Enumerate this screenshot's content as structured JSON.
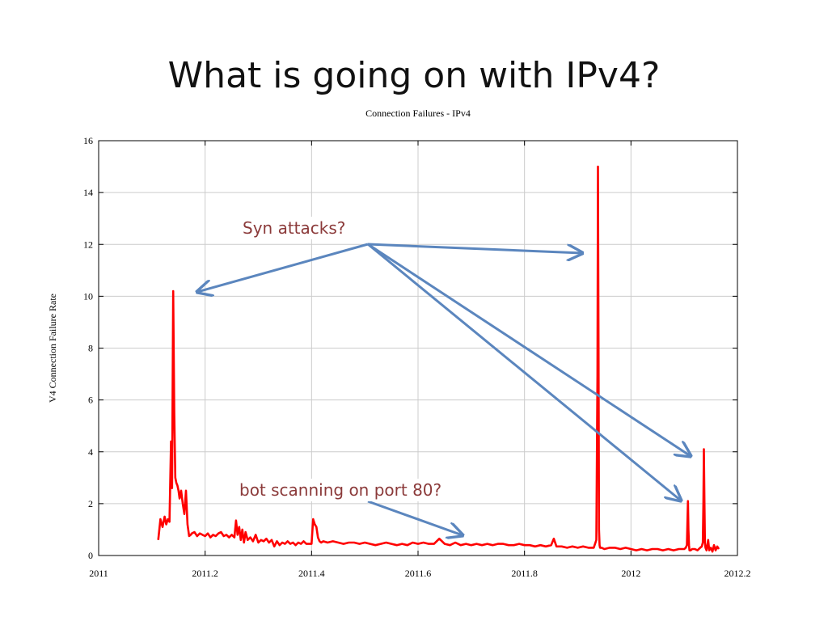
{
  "slide": {
    "title": "What is going on with IPv4?"
  },
  "annotations": {
    "syn": "Syn attacks?",
    "bot": "bot scanning on port 80?"
  },
  "chart_data": {
    "type": "line",
    "title": "Connection Failures - IPv4",
    "xlabel": "",
    "ylabel": "V4 Connection Failure Rate",
    "xlim": [
      2011,
      2012.2
    ],
    "ylim": [
      0,
      16
    ],
    "xticks": [
      2011,
      2011.2,
      2011.4,
      2011.6,
      2011.8,
      2012,
      2012.2
    ],
    "xtick_labels": [
      "2011",
      "2011.2",
      "2011.4",
      "2011.6",
      "2011.8",
      "2012",
      "2012.2"
    ],
    "yticks": [
      0,
      2,
      4,
      6,
      8,
      10,
      12,
      14,
      16
    ],
    "ytick_labels": [
      "0",
      "2",
      "4",
      "6",
      "8",
      "10",
      "12",
      "14",
      "16"
    ],
    "grid": true,
    "line_color": "#ff0000",
    "arrow_color": "#5b86be",
    "series": [
      {
        "x": [
          2011.112,
          2011.116,
          2011.12,
          2011.124,
          2011.127,
          2011.13,
          2011.133,
          2011.136,
          2011.138,
          2011.14,
          2011.142,
          2011.144,
          2011.146,
          2011.148,
          2011.15,
          2011.152,
          2011.155,
          2011.158,
          2011.161,
          2011.164,
          2011.167,
          2011.17,
          2011.173,
          2011.175,
          2011.18,
          2011.185,
          2011.19,
          2011.195,
          2011.2,
          2011.205,
          2011.21,
          2011.215,
          2011.22,
          2011.225,
          2011.23,
          2011.235,
          2011.24,
          2011.245,
          2011.25,
          2011.255,
          2011.258,
          2011.261,
          2011.264,
          2011.267,
          2011.27,
          2011.273,
          2011.276,
          2011.28,
          2011.285,
          2011.29,
          2011.295,
          2011.3,
          2011.305,
          2011.31,
          2011.315,
          2011.32,
          2011.325,
          2011.33,
          2011.335,
          2011.34,
          2011.345,
          2011.35,
          2011.355,
          2011.36,
          2011.365,
          2011.37,
          2011.375,
          2011.38,
          2011.385,
          2011.39,
          2011.4,
          2011.403,
          2011.406,
          2011.409,
          2011.412,
          2011.415,
          2011.418,
          2011.422,
          2011.43,
          2011.44,
          2011.45,
          2011.46,
          2011.47,
          2011.48,
          2011.49,
          2011.5,
          2011.51,
          2011.52,
          2011.53,
          2011.54,
          2011.55,
          2011.56,
          2011.57,
          2011.58,
          2011.59,
          2011.6,
          2011.61,
          2011.62,
          2011.63,
          2011.64,
          2011.65,
          2011.66,
          2011.67,
          2011.68,
          2011.69,
          2011.7,
          2011.71,
          2011.72,
          2011.73,
          2011.74,
          2011.75,
          2011.76,
          2011.77,
          2011.78,
          2011.79,
          2011.8,
          2011.81,
          2011.82,
          2011.83,
          2011.84,
          2011.85,
          2011.855,
          2011.86,
          2011.87,
          2011.88,
          2011.89,
          2011.9,
          2011.91,
          2011.92,
          2011.93,
          2011.935,
          2011.937,
          2011.938,
          2011.939,
          2011.94,
          2011.941,
          2011.942,
          2011.943,
          2011.945,
          2011.95,
          2011.96,
          2011.97,
          2011.98,
          2011.99,
          2012.0,
          2012.01,
          2012.02,
          2012.03,
          2012.04,
          2012.05,
          2012.06,
          2012.07,
          2012.08,
          2012.09,
          2012.1,
          2012.103,
          2012.105,
          2012.106,
          2012.107,
          2012.108,
          2012.109,
          2012.11,
          2012.112,
          2012.115,
          2012.12,
          2012.125,
          2012.13,
          2012.133,
          2012.135,
          2012.136,
          2012.137,
          2012.138,
          2012.139,
          2012.14,
          2012.142,
          2012.145,
          2012.147,
          2012.15,
          2012.153,
          2012.156,
          2012.159,
          2012.162,
          2012.165
        ],
        "y": [
          0.6,
          1.4,
          1.1,
          1.5,
          1.2,
          1.4,
          1.3,
          4.4,
          2.6,
          10.2,
          5.5,
          3.0,
          2.8,
          2.7,
          2.5,
          2.2,
          2.5,
          2.0,
          1.6,
          2.5,
          1.2,
          0.75,
          0.8,
          0.85,
          0.9,
          0.75,
          0.85,
          0.8,
          0.75,
          0.85,
          0.7,
          0.8,
          0.75,
          0.85,
          0.9,
          0.75,
          0.8,
          0.7,
          0.8,
          0.7,
          1.35,
          0.8,
          1.1,
          0.6,
          1.0,
          0.5,
          0.9,
          0.6,
          0.7,
          0.55,
          0.8,
          0.5,
          0.6,
          0.55,
          0.65,
          0.5,
          0.6,
          0.35,
          0.55,
          0.4,
          0.5,
          0.45,
          0.55,
          0.45,
          0.5,
          0.4,
          0.5,
          0.45,
          0.55,
          0.45,
          0.45,
          1.4,
          1.2,
          1.1,
          0.7,
          0.55,
          0.5,
          0.55,
          0.5,
          0.55,
          0.5,
          0.45,
          0.5,
          0.5,
          0.45,
          0.5,
          0.45,
          0.4,
          0.45,
          0.5,
          0.45,
          0.4,
          0.45,
          0.4,
          0.5,
          0.45,
          0.5,
          0.45,
          0.45,
          0.65,
          0.45,
          0.4,
          0.5,
          0.4,
          0.45,
          0.4,
          0.45,
          0.4,
          0.45,
          0.4,
          0.45,
          0.45,
          0.4,
          0.4,
          0.45,
          0.4,
          0.4,
          0.35,
          0.4,
          0.35,
          0.4,
          0.65,
          0.35,
          0.35,
          0.3,
          0.35,
          0.3,
          0.35,
          0.3,
          0.3,
          0.6,
          7.0,
          15.0,
          8.0,
          1.0,
          0.4,
          0.3,
          0.3,
          0.3,
          0.25,
          0.3,
          0.3,
          0.25,
          0.3,
          0.25,
          0.2,
          0.25,
          0.2,
          0.25,
          0.25,
          0.2,
          0.25,
          0.2,
          0.25,
          0.25,
          0.3,
          0.4,
          1.2,
          2.1,
          1.0,
          0.4,
          0.2,
          0.2,
          0.25,
          0.25,
          0.2,
          0.3,
          0.35,
          0.5,
          2.0,
          4.1,
          2.0,
          0.5,
          0.3,
          0.2,
          0.6,
          0.2,
          0.3,
          0.15,
          0.4,
          0.2,
          0.35,
          0.25
        ]
      }
    ]
  }
}
